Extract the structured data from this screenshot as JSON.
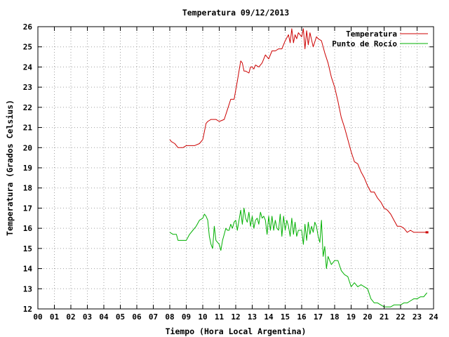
{
  "chart_data": {
    "type": "line",
    "title": "Temperatura 09/12/2013",
    "xlabel": "Tiempo (Hora Local Argentina)",
    "ylabel": "Temperatura (Grados Celsius)",
    "xlim": [
      0,
      24
    ],
    "ylim": [
      12,
      26
    ],
    "x_ticks": [
      "00",
      "01",
      "02",
      "03",
      "04",
      "05",
      "06",
      "07",
      "08",
      "09",
      "10",
      "11",
      "12",
      "13",
      "14",
      "15",
      "16",
      "17",
      "18",
      "19",
      "20",
      "21",
      "22",
      "23",
      "24"
    ],
    "y_ticks": [
      "12",
      "13",
      "14",
      "15",
      "16",
      "17",
      "18",
      "19",
      "20",
      "21",
      "22",
      "23",
      "24",
      "25",
      "26"
    ],
    "grid": true,
    "legend_position": "top-right",
    "series": [
      {
        "name": "Temperatura",
        "color": "#cc0000",
        "x": [
          8.0,
          8.1,
          8.3,
          8.5,
          8.8,
          9.0,
          9.2,
          9.5,
          9.8,
          10.0,
          10.1,
          10.2,
          10.3,
          10.5,
          10.8,
          11.0,
          11.3,
          11.5,
          11.7,
          11.9,
          12.1,
          12.3,
          12.4,
          12.5,
          12.6,
          12.8,
          12.9,
          13.0,
          13.1,
          13.2,
          13.4,
          13.6,
          13.8,
          14.0,
          14.2,
          14.4,
          14.6,
          14.8,
          15.0,
          15.2,
          15.3,
          15.4,
          15.5,
          15.6,
          15.7,
          15.8,
          16.0,
          16.1,
          16.2,
          16.3,
          16.4,
          16.5,
          16.7,
          16.9,
          17.0,
          17.2,
          17.4,
          17.6,
          17.8,
          18.0,
          18.2,
          18.4,
          18.6,
          18.8,
          19.0,
          19.2,
          19.4,
          19.6,
          19.8,
          20.0,
          20.2,
          20.4,
          20.6,
          20.8,
          21.0,
          21.2,
          21.4,
          21.6,
          21.8,
          22.0,
          22.2,
          22.4,
          22.6,
          22.8,
          23.0,
          23.2,
          23.4,
          23.6
        ],
        "values": [
          20.4,
          20.3,
          20.2,
          20.0,
          20.0,
          20.1,
          20.1,
          20.1,
          20.2,
          20.4,
          20.8,
          21.2,
          21.3,
          21.4,
          21.4,
          21.3,
          21.4,
          21.9,
          22.4,
          22.4,
          23.3,
          24.3,
          24.2,
          23.8,
          23.8,
          23.7,
          24.0,
          24.0,
          23.9,
          24.1,
          24.0,
          24.2,
          24.6,
          24.4,
          24.8,
          24.8,
          24.9,
          24.9,
          25.3,
          25.6,
          25.2,
          25.9,
          25.2,
          25.6,
          25.4,
          25.7,
          25.5,
          25.9,
          24.9,
          25.8,
          25.1,
          25.7,
          25.0,
          25.5,
          25.4,
          25.3,
          24.7,
          24.2,
          23.5,
          23.0,
          22.3,
          21.5,
          21.0,
          20.4,
          19.8,
          19.3,
          19.2,
          18.8,
          18.5,
          18.1,
          17.8,
          17.8,
          17.5,
          17.3,
          17.0,
          16.9,
          16.7,
          16.4,
          16.1,
          16.1,
          16.0,
          15.8,
          15.9,
          15.8,
          15.8,
          15.8,
          15.8,
          15.8
        ]
      },
      {
        "name": "Punto de Rocío",
        "color": "#00b000",
        "x": [
          8.0,
          8.2,
          8.4,
          8.5,
          8.7,
          9.0,
          9.2,
          9.4,
          9.6,
          9.8,
          10.0,
          10.1,
          10.2,
          10.3,
          10.4,
          10.5,
          10.6,
          10.7,
          10.8,
          11.0,
          11.1,
          11.2,
          11.3,
          11.4,
          11.5,
          11.6,
          11.7,
          11.8,
          11.9,
          12.0,
          12.1,
          12.2,
          12.3,
          12.4,
          12.5,
          12.6,
          12.7,
          12.8,
          12.9,
          13.0,
          13.1,
          13.2,
          13.3,
          13.4,
          13.5,
          13.6,
          13.7,
          13.8,
          13.9,
          14.0,
          14.1,
          14.2,
          14.3,
          14.4,
          14.5,
          14.6,
          14.7,
          14.8,
          14.9,
          15.0,
          15.1,
          15.2,
          15.3,
          15.4,
          15.5,
          15.6,
          15.7,
          15.8,
          15.9,
          16.0,
          16.1,
          16.2,
          16.3,
          16.4,
          16.5,
          16.6,
          16.7,
          16.8,
          16.9,
          17.0,
          17.1,
          17.2,
          17.3,
          17.4,
          17.5,
          17.6,
          17.8,
          18.0,
          18.2,
          18.4,
          18.6,
          18.8,
          19.0,
          19.2,
          19.4,
          19.6,
          19.8,
          20.0,
          20.2,
          20.4,
          20.6,
          20.8,
          21.0,
          21.2,
          21.4,
          21.6,
          21.8,
          22.0,
          22.2,
          22.4,
          22.6,
          22.8,
          23.0,
          23.2,
          23.4,
          23.6
        ],
        "values": [
          15.8,
          15.7,
          15.7,
          15.4,
          15.4,
          15.4,
          15.7,
          15.9,
          16.1,
          16.4,
          16.5,
          16.7,
          16.6,
          16.4,
          15.6,
          15.2,
          15.0,
          16.1,
          15.4,
          15.2,
          14.9,
          15.4,
          15.7,
          16.0,
          15.9,
          15.9,
          16.2,
          16.0,
          16.3,
          16.4,
          15.9,
          16.4,
          16.9,
          16.2,
          17.0,
          16.5,
          16.3,
          16.8,
          16.1,
          16.6,
          16.0,
          16.4,
          16.5,
          16.2,
          16.8,
          16.5,
          16.6,
          16.4,
          15.7,
          16.6,
          15.9,
          16.6,
          15.9,
          16.4,
          16.0,
          15.9,
          16.7,
          15.6,
          16.6,
          15.9,
          16.4,
          16.1,
          15.6,
          16.5,
          15.7,
          16.3,
          15.6,
          15.9,
          15.9,
          15.9,
          15.2,
          16.2,
          15.4,
          16.3,
          15.7,
          16.1,
          15.8,
          16.3,
          16.1,
          15.6,
          15.3,
          16.4,
          14.6,
          15.1,
          14.0,
          14.6,
          14.2,
          14.4,
          14.4,
          13.9,
          13.7,
          13.6,
          13.1,
          13.3,
          13.1,
          13.2,
          13.1,
          13.0,
          12.5,
          12.3,
          12.3,
          12.2,
          12.1,
          12.1,
          12.1,
          12.2,
          12.2,
          12.2,
          12.3,
          12.3,
          12.4,
          12.5,
          12.5,
          12.6,
          12.6,
          12.8
        ]
      }
    ]
  }
}
